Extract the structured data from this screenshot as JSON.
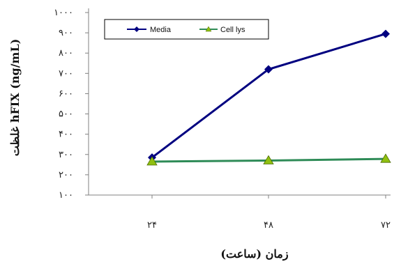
{
  "chart_data": {
    "type": "line",
    "x": [
      24,
      48,
      72
    ],
    "x_tick_labels": [
      "۲۴",
      "۴۸",
      "۷۲"
    ],
    "y_tick_labels": [
      "۱۰۰",
      "۲۰۰",
      "۳۰۰",
      "۴۰۰",
      "۵۰۰",
      "۶۰۰",
      "۷۰۰",
      "۸۰۰",
      "۹۰۰",
      "۱۰۰۰"
    ],
    "ylim": [
      100,
      1000
    ],
    "xlabel": "زمان (ساعت)",
    "ylabel": "غلظت hFIX (ng/mL)",
    "grid": false,
    "legend_position": "top-left",
    "series": [
      {
        "name": "Media",
        "values": [
          285,
          720,
          895
        ],
        "color": "#000080",
        "marker": "diamond"
      },
      {
        "name": "Cell lys",
        "values": [
          265,
          270,
          278
        ],
        "color": "#2e8b57",
        "marker": "triangle",
        "marker_color": "#90c010"
      }
    ]
  }
}
